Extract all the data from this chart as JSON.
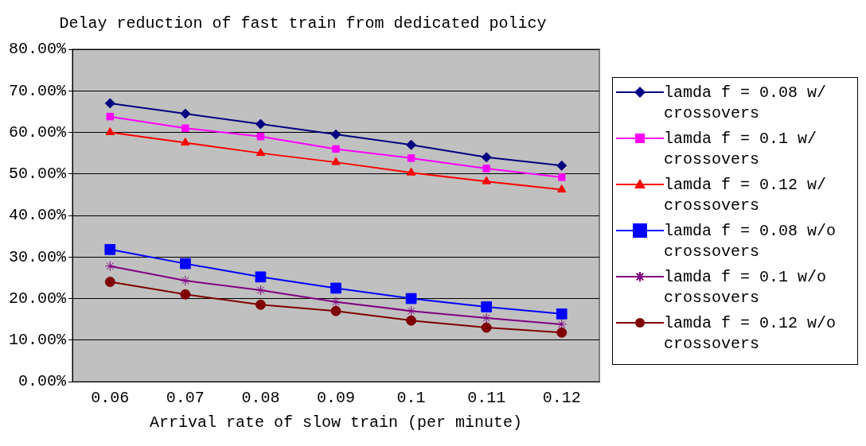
{
  "chart_data": {
    "type": "line",
    "title": "Delay reduction of fast train from dedicated policy",
    "xlabel": "Arrival rate of slow train (per minute)",
    "categories": [
      "0.06",
      "0.07",
      "0.08",
      "0.09",
      "0.1",
      "0.11",
      "0.12"
    ],
    "series": [
      {
        "name": "lamda f = 0.08 w/ crossovers",
        "color": "#000080",
        "marker": "diamond",
        "values": [
          67,
          64.5,
          62,
          59.5,
          57,
          54,
          52
        ]
      },
      {
        "name": "lamda f = 0.1 w/ crossovers",
        "color": "#ff00ff",
        "marker": "square",
        "values": [
          63.8,
          61,
          59,
          56,
          53.8,
          51.3,
          49.2
        ]
      },
      {
        "name": "lamda f = 0.12 w/ crossovers",
        "color": "#ff0000",
        "marker": "triangle",
        "values": [
          60,
          57.5,
          55,
          52.8,
          50.3,
          48.2,
          46.2
        ]
      },
      {
        "name": "lamda f = 0.08 w/o crossovers",
        "color": "#0000ff",
        "marker": "square",
        "values": [
          31.8,
          28.4,
          25.2,
          22.5,
          20,
          18,
          16.3
        ]
      },
      {
        "name": "lamda f = 0.1 w/o crossovers",
        "color": "#800080",
        "marker": "cross",
        "values": [
          27.8,
          24.3,
          22,
          19.2,
          17,
          15.3,
          13.8
        ]
      },
      {
        "name": "lamda f = 0.12 w/o crossovers",
        "color": "#800000",
        "marker": "circle",
        "values": [
          24,
          21,
          18.5,
          17,
          14.7,
          13,
          11.8
        ]
      }
    ],
    "ylim": [
      0,
      80
    ],
    "yticks": [
      {
        "value": 0,
        "label": "0.00%"
      },
      {
        "value": 10,
        "label": "10.00%"
      },
      {
        "value": 20,
        "label": "20.00%"
      },
      {
        "value": 30,
        "label": "30.00%"
      },
      {
        "value": 40,
        "label": "40.00%"
      },
      {
        "value": 50,
        "label": "50.00%"
      },
      {
        "value": 60,
        "label": "60.00%"
      },
      {
        "value": 70,
        "label": "70.00%"
      },
      {
        "value": 80,
        "label": "80.00%"
      }
    ],
    "grid": "y",
    "legend": "right",
    "line_style": "solid"
  }
}
